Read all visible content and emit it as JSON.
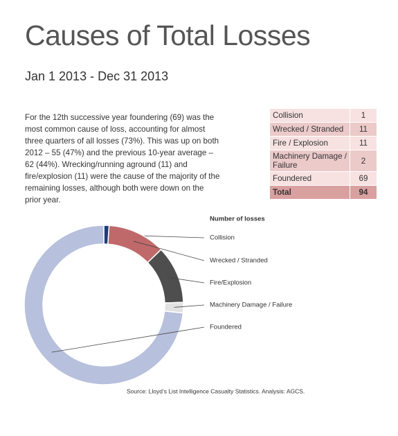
{
  "header": {
    "title": "Causes of Total Losses",
    "subtitle": "Jan 1 2013 - Dec 31 2013"
  },
  "body": {
    "text": "For the 12th successive year foundering (69) was the most common cause of loss, accounting for almost three quarters of all losses (73%). This was up on both 2012 – 55 (47%) and the previous 10-year average – 62 (44%). Wrecking/running aground (11) and fire/explosion (11) were the cause of the majority of the remaining losses, although both were down on the prior year."
  },
  "table": {
    "rows": [
      [
        "Collision",
        1
      ],
      [
        "Wrecked / Stranded",
        11
      ],
      [
        "Fire / Explosion",
        11
      ],
      [
        "Machinery Damage / Failure",
        2
      ],
      [
        "Foundered",
        69
      ]
    ],
    "total": [
      "Total",
      94
    ]
  },
  "chart_data": {
    "type": "donut",
    "title": "Number of losses",
    "categories": [
      "Collision",
      "Wrecked / Stranded",
      "Fire/Explosion",
      "Machinery Damage / Failure",
      "Foundered"
    ],
    "values": [
      1,
      11,
      11,
      2,
      69
    ],
    "colors": [
      "#1d3d78",
      "#c0696a",
      "#4e4e4e",
      "#e2e2e2",
      "#b7c0dc"
    ],
    "source": "Source: Lloyd’s List Intelligence Casualty Statistics. Analysis: AGCS."
  }
}
